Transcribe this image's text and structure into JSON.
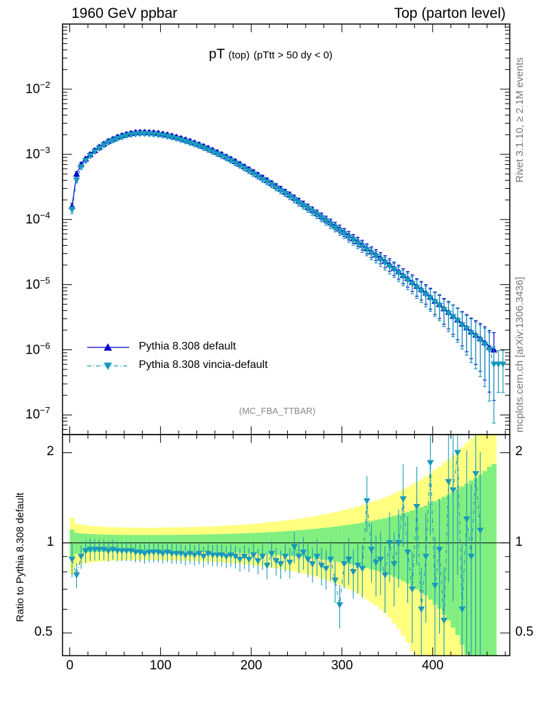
{
  "header": {
    "left": "1960 GeV ppbar",
    "right": "Top (parton level)"
  },
  "plot_title": {
    "main": "pT",
    "sub1": "(top)",
    "sub2": "(pTtt > 50 dy < 0)"
  },
  "analysis_label": "(MC_FBA_TTBAR)",
  "side_labels": {
    "rivet": "Rivet 3.1.10, ≥ 2.1M events",
    "mcplots": "mcplots.cern.ch [arXiv:1306.3436]"
  },
  "ratio_ylabel": "Ratio to Pythia 8.308 default",
  "legend": [
    {
      "label": "Pythia 8.308 default",
      "color": "#0000cc",
      "marker": "triangle-up",
      "style": "solid"
    },
    {
      "label": "Pythia 8.308 vincia-default",
      "color": "#1899bb",
      "marker": "triangle-down",
      "style": "dash-dot"
    }
  ],
  "chart_data": [
    {
      "type": "line",
      "yscale": "log",
      "xlim": [
        -8,
        485
      ],
      "ylim": [
        5e-08,
        0.1
      ],
      "ytick_labels": [
        "10^-7",
        "10^-6",
        "10^-5",
        "10^-4",
        "10^-3",
        "10^-2"
      ],
      "x": [
        2.5,
        7.5,
        12.5,
        17.5,
        22.5,
        27.5,
        32.5,
        37.5,
        42.5,
        47.5,
        52.5,
        57.5,
        62.5,
        67.5,
        72.5,
        77.5,
        82.5,
        87.5,
        92.5,
        97.5,
        102.5,
        107.5,
        112.5,
        117.5,
        122.5,
        127.5,
        132.5,
        137.5,
        142.5,
        147.5,
        152.5,
        157.5,
        162.5,
        167.5,
        172.5,
        177.5,
        182.5,
        187.5,
        192.5,
        197.5,
        202.5,
        207.5,
        212.5,
        217.5,
        222.5,
        227.5,
        232.5,
        237.5,
        242.5,
        247.5,
        252.5,
        257.5,
        262.5,
        267.5,
        272.5,
        277.5,
        282.5,
        287.5,
        292.5,
        297.5,
        302.5,
        307.5,
        312.5,
        317.5,
        322.5,
        327.5,
        332.5,
        337.5,
        342.5,
        347.5,
        352.5,
        357.5,
        362.5,
        367.5,
        372.5,
        377.5,
        382.5,
        387.5,
        392.5,
        397.5,
        402.5,
        407.5,
        412.5,
        417.5,
        422.5,
        427.5,
        432.5,
        437.5,
        442.5,
        447.5,
        452.5,
        457.5,
        462.5,
        467.5,
        472.5,
        477.5
      ],
      "series": [
        {
          "name": "Pythia 8.308 default",
          "values": [
            0.00016,
            0.0005,
            0.0007,
            0.00085,
            0.001,
            0.00115,
            0.0013,
            0.00145,
            0.0016,
            0.00172,
            0.00185,
            0.00195,
            0.00205,
            0.00212,
            0.00218,
            0.0022,
            0.0022,
            0.00218,
            0.00216,
            0.00212,
            0.00206,
            0.002,
            0.00193,
            0.00185,
            0.00177,
            0.00168,
            0.0016,
            0.00151,
            0.00142,
            0.00133,
            0.00125,
            0.00116,
            0.00108,
            0.001,
            0.00092,
            0.00085,
            0.00078,
            0.00071,
            0.00065,
            0.00059,
            0.000535,
            0.000485,
            0.00044,
            0.0004,
            0.00036,
            0.000325,
            0.000295,
            0.000265,
            0.00024,
            0.000215,
            0.000193,
            0.000173,
            0.000155,
            0.00014,
            0.000125,
            0.000112,
            0.0001,
            9e-05,
            8e-05,
            7.2e-05,
            6.4e-05,
            5.7e-05,
            5.1e-05,
            4.6e-05,
            4.1e-05,
            3.6e-05,
            3.2e-05,
            2.9e-05,
            2.6e-05,
            2.3e-05,
            2.05e-05,
            1.8e-05,
            1.6e-05,
            1.4e-05,
            1.25e-05,
            1.1e-05,
            9.5e-06,
            8.5e-06,
            7.5e-06,
            6.5e-06,
            5.6e-06,
            5e-06,
            4.3e-06,
            3.8e-06,
            3.3e-06,
            2.9e-06,
            2.5e-06,
            2.2e-06,
            1.9e-06,
            1.7e-06,
            1.5e-06,
            1.3e-06,
            1.1e-06,
            1e-06,
            null,
            null
          ]
        },
        {
          "name": "Pythia 8.308 vincia-default",
          "values": [
            0.00014,
            0.0004,
            0.00064,
            0.0008,
            0.00095,
            0.0011,
            0.00124,
            0.00138,
            0.00152,
            0.00163,
            0.00174,
            0.00184,
            0.00194,
            0.002,
            0.00205,
            0.00207,
            0.00207,
            0.00205,
            0.00203,
            0.00199,
            0.00194,
            0.00188,
            0.00181,
            0.00174,
            0.00166,
            0.00158,
            0.0015,
            0.00142,
            0.00134,
            0.00125,
            0.00117,
            0.00109,
            0.00101,
            0.00094,
            0.00087,
            0.0008,
            0.00073,
            0.00067,
            0.00061,
            0.000555,
            0.0005,
            0.000455,
            0.00041,
            0.000375,
            0.00034,
            0.000305,
            0.000275,
            0.00025,
            0.000225,
            0.000202,
            0.00018,
            0.000162,
            0.000146,
            0.000131,
            0.000117,
            0.000105,
            9.4e-05,
            8.4e-05,
            7.5e-05,
            6.7e-05,
            6e-05,
            5.3e-05,
            4.8e-05,
            4.3e-05,
            3.8e-05,
            3.4e-05,
            3e-05,
            2.7e-05,
            2.4e-05,
            2.15e-05,
            1.9e-05,
            1.7e-05,
            1.5e-05,
            1.32e-05,
            1.17e-05,
            1.03e-05,
            9e-06,
            8e-06,
            7e-06,
            6.2e-06,
            5.4e-06,
            4.8e-06,
            4.1e-06,
            3.6e-06,
            3.2e-06,
            2.8e-06,
            2.4e-06,
            2.1e-06,
            1.8e-06,
            1.6e-06,
            1.4e-06,
            1.2e-06,
            1e-06,
            6e-07,
            6e-07,
            6e-07
          ]
        }
      ]
    },
    {
      "type": "line",
      "ylabel": "Ratio to Pythia 8.308 default",
      "xlim": [
        -8,
        485
      ],
      "ylim": [
        0.42,
        2.3
      ],
      "xtick_labels": [
        "0",
        "100",
        "200",
        "300",
        "400"
      ],
      "ytick_labels": [
        "0.5",
        "1",
        "2"
      ],
      "x": [
        2.5,
        7.5,
        12.5,
        17.5,
        22.5,
        27.5,
        32.5,
        37.5,
        42.5,
        47.5,
        52.5,
        57.5,
        62.5,
        67.5,
        72.5,
        77.5,
        82.5,
        87.5,
        92.5,
        97.5,
        102.5,
        107.5,
        112.5,
        117.5,
        122.5,
        127.5,
        132.5,
        137.5,
        142.5,
        147.5,
        152.5,
        157.5,
        162.5,
        167.5,
        172.5,
        177.5,
        182.5,
        187.5,
        192.5,
        197.5,
        202.5,
        207.5,
        212.5,
        217.5,
        222.5,
        227.5,
        232.5,
        237.5,
        242.5,
        247.5,
        252.5,
        257.5,
        262.5,
        267.5,
        272.5,
        277.5,
        282.5,
        287.5,
        292.5,
        297.5,
        302.5,
        307.5,
        312.5,
        317.5,
        322.5,
        327.5,
        332.5,
        337.5,
        342.5,
        347.5,
        352.5,
        357.5,
        362.5,
        367.5,
        372.5,
        377.5,
        382.5,
        387.5,
        392.5,
        397.5,
        402.5,
        407.5,
        412.5,
        417.5,
        422.5,
        427.5,
        432.5,
        437.5,
        442.5,
        447.5,
        452.5
      ],
      "series": [
        {
          "name": "Pythia 8.308 vincia-default",
          "values": [
            0.88,
            0.78,
            0.9,
            0.94,
            0.95,
            0.95,
            0.95,
            0.95,
            0.94,
            0.95,
            0.94,
            0.94,
            0.94,
            0.94,
            0.93,
            0.93,
            0.92,
            0.93,
            0.93,
            0.93,
            0.92,
            0.93,
            0.92,
            0.92,
            0.92,
            0.91,
            0.92,
            0.91,
            0.92,
            0.9,
            0.92,
            0.91,
            0.91,
            0.91,
            0.9,
            0.91,
            0.9,
            0.88,
            0.9,
            0.88,
            0.91,
            0.87,
            0.9,
            0.84,
            0.92,
            0.87,
            0.85,
            0.9,
            0.86,
            0.97,
            0.9,
            0.93,
            0.88,
            0.85,
            0.9,
            0.84,
            0.82,
            0.88,
            0.75,
            0.62,
            0.85,
            0.88,
            0.8,
            0.84,
            0.82,
            1.38,
            0.95,
            0.86,
            0.88,
            0.78,
            1.0,
            0.85,
            1.0,
            1.4,
            0.93,
            0.7,
            1.32,
            0.6,
            0.9,
            1.85,
            0.72,
            0.95,
            0.55,
            1.6,
            1.5,
            2.0,
            0.6,
            1.2,
            0.9,
            1.7,
            1.1
          ]
        }
      ]
    }
  ]
}
